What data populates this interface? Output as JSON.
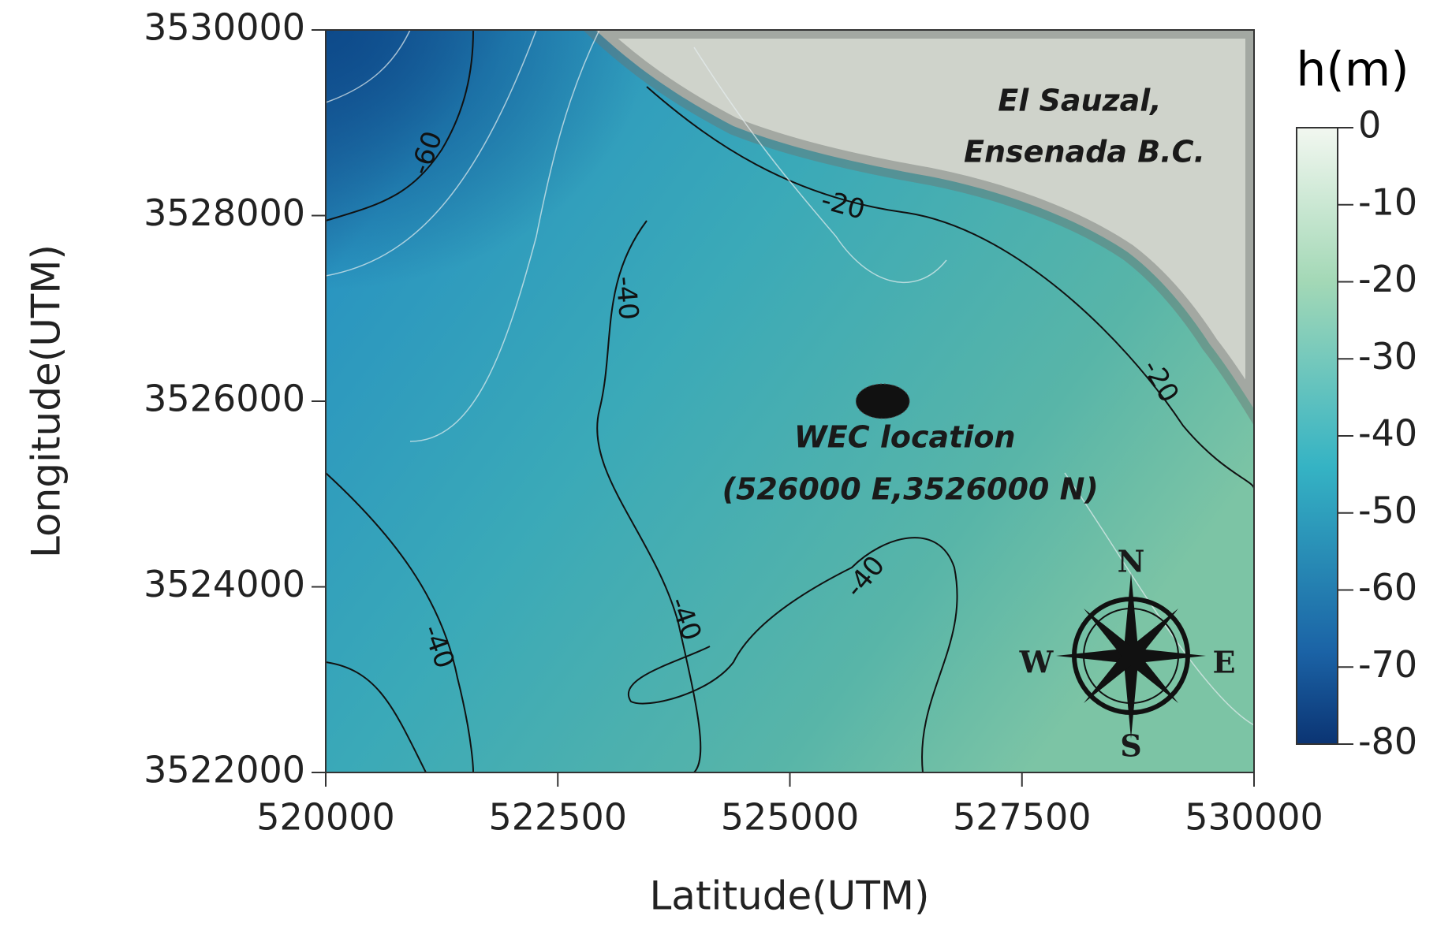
{
  "chart_data": {
    "type": "contour",
    "xlabel": "Latitude(UTM)",
    "ylabel": "Longitude(UTM)",
    "xlim": [
      520000,
      530000
    ],
    "xticks": [
      520000,
      522500,
      525000,
      527500,
      530000
    ],
    "ylim": [
      3522000,
      3530000
    ],
    "yticks": [
      3522000,
      3524000,
      3526000,
      3528000,
      3530000
    ],
    "colorbar": {
      "title": "h(m)",
      "lim": [
        -80,
        0
      ],
      "ticks": [
        0,
        -10,
        -20,
        -30,
        -40,
        -50,
        -60,
        -70,
        -80
      ]
    },
    "contour_labels": [
      {
        "x": 521100,
        "y": 3528670,
        "value": -60
      },
      {
        "x": 525570,
        "y": 3528100,
        "value": -20
      },
      {
        "x": 528980,
        "y": 3526210,
        "value": -20
      },
      {
        "x": 523230,
        "y": 3527110,
        "value": -40
      },
      {
        "x": 523860,
        "y": 3523650,
        "value": -40
      },
      {
        "x": 525820,
        "y": 3524100,
        "value": -40
      },
      {
        "x": 521200,
        "y": 3523350,
        "value": -40
      }
    ],
    "point": {
      "x": 526000,
      "y": 3526000,
      "label": "WEC location",
      "coords": "(526000 E,3526000 N)"
    },
    "place": [
      "El Sauzal,",
      "Ensenada B.C."
    ],
    "compass": [
      "N",
      "E",
      "S",
      "W"
    ]
  }
}
